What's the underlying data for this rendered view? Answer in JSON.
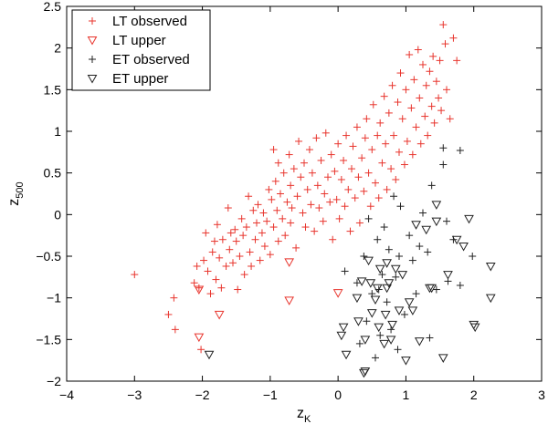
{
  "chart_data": {
    "type": "scatter",
    "title": "",
    "xlabel": "z",
    "xlabel_sub": "K",
    "ylabel": "z",
    "ylabel_sub": "500",
    "xlim": [
      -4,
      3
    ],
    "ylim": [
      -2,
      2.5
    ],
    "xticks": [
      -4,
      -3,
      -2,
      -1,
      0,
      1,
      2,
      3
    ],
    "yticks": [
      -2,
      -1.5,
      -1,
      -0.5,
      0,
      0.5,
      1,
      1.5,
      2,
      2.5
    ],
    "xtick_labels": [
      "−4",
      "−3",
      "−2",
      "−1",
      "0",
      "1",
      "2",
      "3"
    ],
    "ytick_labels": [
      "−2",
      "−1.5",
      "−1",
      "−0.5",
      "0",
      "0.5",
      "1",
      "1.5",
      "2",
      "2.5"
    ],
    "grid": false,
    "legend_position": "top-left",
    "series": [
      {
        "name": "LT observed",
        "marker": "plus",
        "color": "#e8342c",
        "points": [
          [
            -3.0,
            -0.72
          ],
          [
            -2.5,
            -1.2
          ],
          [
            -2.42,
            -1.0
          ],
          [
            -2.4,
            -1.38
          ],
          [
            -2.12,
            -0.82
          ],
          [
            -2.08,
            -0.62
          ],
          [
            -2.05,
            -0.88
          ],
          [
            -2.02,
            -1.62
          ],
          [
            -1.98,
            -0.55
          ],
          [
            -1.95,
            -0.22
          ],
          [
            -1.92,
            -0.68
          ],
          [
            -1.88,
            -0.95
          ],
          [
            -1.85,
            -0.45
          ],
          [
            -1.82,
            -0.32
          ],
          [
            -1.8,
            -0.78
          ],
          [
            -1.78,
            -0.12
          ],
          [
            -1.75,
            -0.52
          ],
          [
            -1.72,
            -0.88
          ],
          [
            -1.7,
            -0.3
          ],
          [
            -1.65,
            -0.62
          ],
          [
            -1.62,
            0.08
          ],
          [
            -1.6,
            -0.42
          ],
          [
            -1.58,
            -0.22
          ],
          [
            -1.55,
            -0.58
          ],
          [
            -1.52,
            -0.18
          ],
          [
            -1.5,
            -0.32
          ],
          [
            -1.48,
            -0.9
          ],
          [
            -1.45,
            -0.5
          ],
          [
            -1.42,
            -0.05
          ],
          [
            -1.4,
            -0.25
          ],
          [
            -1.38,
            -0.72
          ],
          [
            -1.35,
            -0.15
          ],
          [
            -1.32,
            0.22
          ],
          [
            -1.3,
            -0.45
          ],
          [
            -1.28,
            -0.62
          ],
          [
            -1.25,
            0.05
          ],
          [
            -1.22,
            -0.3
          ],
          [
            -1.2,
            -0.1
          ],
          [
            -1.18,
            0.12
          ],
          [
            -1.15,
            -0.55
          ],
          [
            -1.12,
            -0.22
          ],
          [
            -1.1,
            0.02
          ],
          [
            -1.08,
            -0.38
          ],
          [
            -1.05,
            -0.08
          ],
          [
            -1.02,
            0.3
          ],
          [
            -1.0,
            -0.48
          ],
          [
            -0.98,
            0.18
          ],
          [
            -0.95,
            -0.15
          ],
          [
            -0.95,
            0.78
          ],
          [
            -0.92,
            0.4
          ],
          [
            -0.9,
            0.05
          ],
          [
            -0.88,
            -0.32
          ],
          [
            -0.88,
            0.62
          ],
          [
            -0.85,
            0.25
          ],
          [
            -0.82,
            -0.05
          ],
          [
            -0.8,
            0.5
          ],
          [
            -0.78,
            -0.25
          ],
          [
            -0.75,
            0.15
          ],
          [
            -0.72,
            0.72
          ],
          [
            -0.7,
            -0.1
          ],
          [
            -0.7,
            0.35
          ],
          [
            -0.68,
            0.08
          ],
          [
            -0.65,
            0.55
          ],
          [
            -0.62,
            -0.4
          ],
          [
            -0.6,
            0.22
          ],
          [
            -0.58,
            0.88
          ],
          [
            -0.55,
            0.45
          ],
          [
            -0.52,
            0.02
          ],
          [
            -0.5,
            0.62
          ],
          [
            -0.48,
            -0.15
          ],
          [
            -0.45,
            0.3
          ],
          [
            -0.42,
            0.78
          ],
          [
            -0.4,
            0.12
          ],
          [
            -0.38,
            0.5
          ],
          [
            -0.35,
            -0.2
          ],
          [
            -0.32,
            0.92
          ],
          [
            -0.3,
            0.35
          ],
          [
            -0.28,
            0.08
          ],
          [
            -0.25,
            0.65
          ],
          [
            -0.22,
            -0.08
          ],
          [
            -0.2,
            0.25
          ],
          [
            -0.18,
            0.98
          ],
          [
            -0.15,
            0.45
          ],
          [
            -0.12,
            0.15
          ],
          [
            -0.1,
            0.72
          ],
          [
            -0.08,
            -0.3
          ],
          [
            -0.05,
            0.52
          ],
          [
            -0.02,
            0.18
          ],
          [
            0.0,
            0.85
          ],
          [
            0.02,
            -0.05
          ],
          [
            0.05,
            0.42
          ],
          [
            0.08,
            0.65
          ],
          [
            0.1,
            0.1
          ],
          [
            0.12,
            0.95
          ],
          [
            0.15,
            0.3
          ],
          [
            0.18,
            -0.2
          ],
          [
            0.2,
            0.55
          ],
          [
            0.22,
            0.82
          ],
          [
            0.25,
            0.2
          ],
          [
            0.28,
            1.05
          ],
          [
            0.3,
            0.45
          ],
          [
            0.32,
            -0.1
          ],
          [
            0.35,
            0.68
          ],
          [
            0.38,
            0.28
          ],
          [
            0.4,
            0.92
          ],
          [
            0.42,
            1.15
          ],
          [
            0.45,
            0.5
          ],
          [
            0.48,
            0.1
          ],
          [
            0.5,
            0.78
          ],
          [
            0.52,
            1.32
          ],
          [
            0.55,
            0.38
          ],
          [
            0.58,
            0.95
          ],
          [
            0.6,
            0.2
          ],
          [
            0.62,
            1.1
          ],
          [
            0.65,
            0.62
          ],
          [
            0.68,
            1.42
          ],
          [
            0.7,
            0.85
          ],
          [
            0.72,
            0.3
          ],
          [
            0.75,
            1.22
          ],
          [
            0.78,
            0.55
          ],
          [
            0.8,
            1.55
          ],
          [
            0.82,
            0.95
          ],
          [
            0.85,
            0.42
          ],
          [
            0.88,
            1.35
          ],
          [
            0.9,
            0.75
          ],
          [
            0.92,
            1.7
          ],
          [
            0.95,
            1.15
          ],
          [
            0.98,
            0.6
          ],
          [
            1.0,
            1.5
          ],
          [
            1.02,
            0.88
          ],
          [
            1.05,
            1.92
          ],
          [
            1.08,
            1.28
          ],
          [
            1.1,
            0.72
          ],
          [
            1.12,
            1.62
          ],
          [
            1.15,
            1.05
          ],
          [
            1.18,
            1.98
          ],
          [
            1.2,
            1.4
          ],
          [
            1.22,
            0.85
          ],
          [
            1.25,
            1.8
          ],
          [
            1.28,
            1.18
          ],
          [
            1.3,
            1.55
          ],
          [
            1.32,
            0.95
          ],
          [
            1.35,
            1.72
          ],
          [
            1.38,
            1.3
          ],
          [
            1.4,
            1.9
          ],
          [
            1.42,
            1.1
          ],
          [
            1.45,
            1.6
          ],
          [
            1.48,
            1.4
          ],
          [
            1.5,
            1.85
          ],
          [
            1.52,
            1.25
          ],
          [
            1.55,
            2.28
          ],
          [
            1.58,
            2.05
          ],
          [
            1.6,
            1.5
          ],
          [
            1.65,
            1.15
          ],
          [
            1.7,
            2.12
          ],
          [
            1.75,
            1.85
          ]
        ]
      },
      {
        "name": "LT upper",
        "marker": "triangle-down",
        "color": "#e8342c",
        "points": [
          [
            -2.05,
            -0.9
          ],
          [
            -2.05,
            -1.47
          ],
          [
            -1.75,
            -1.2
          ],
          [
            -0.72,
            -0.57
          ],
          [
            -0.72,
            -1.03
          ],
          [
            0.0,
            -0.94
          ]
        ]
      },
      {
        "name": "ET observed",
        "marker": "plus",
        "color": "#222222",
        "points": [
          [
            0.1,
            -0.68
          ],
          [
            0.28,
            -0.82
          ],
          [
            0.32,
            -1.55
          ],
          [
            0.38,
            -0.5
          ],
          [
            0.42,
            -1.28
          ],
          [
            0.45,
            -0.05
          ],
          [
            0.5,
            -0.95
          ],
          [
            0.55,
            -1.72
          ],
          [
            0.58,
            -0.3
          ],
          [
            0.6,
            -0.9
          ],
          [
            0.62,
            -1.45
          ],
          [
            0.65,
            -0.72
          ],
          [
            0.68,
            -0.15
          ],
          [
            0.72,
            -1.05
          ],
          [
            0.75,
            -0.42
          ],
          [
            0.78,
            -1.38
          ],
          [
            0.82,
            0.22
          ],
          [
            0.85,
            -0.75
          ],
          [
            0.88,
            -1.62
          ],
          [
            0.9,
            -0.5
          ],
          [
            0.92,
            0.1
          ],
          [
            0.98,
            -1.2
          ],
          [
            1.05,
            -0.25
          ],
          [
            1.1,
            -0.55
          ],
          [
            1.15,
            -0.95
          ],
          [
            1.2,
            -0.38
          ],
          [
            1.25,
            0.02
          ],
          [
            1.32,
            -0.45
          ],
          [
            1.35,
            -1.48
          ],
          [
            1.38,
            0.35
          ],
          [
            1.45,
            -0.9
          ],
          [
            1.55,
            0.6
          ],
          [
            1.55,
            0.8
          ],
          [
            1.6,
            -0.08
          ],
          [
            1.62,
            -0.8
          ],
          [
            1.7,
            -0.3
          ],
          [
            1.8,
            -0.85
          ],
          [
            1.8,
            0.77
          ],
          [
            1.98,
            -0.5
          ]
        ]
      },
      {
        "name": "ET upper",
        "marker": "triangle-down",
        "color": "#222222",
        "points": [
          [
            -1.9,
            -1.68
          ],
          [
            0.05,
            -1.45
          ],
          [
            0.08,
            -1.35
          ],
          [
            0.12,
            -1.68
          ],
          [
            0.28,
            -1.0
          ],
          [
            0.3,
            -1.28
          ],
          [
            0.35,
            -0.8
          ],
          [
            0.38,
            -1.9
          ],
          [
            0.4,
            -1.88
          ],
          [
            0.4,
            -1.5
          ],
          [
            0.45,
            -0.55
          ],
          [
            0.48,
            -0.82
          ],
          [
            0.5,
            -1.18
          ],
          [
            0.55,
            -1.02
          ],
          [
            0.58,
            -0.88
          ],
          [
            0.6,
            -1.35
          ],
          [
            0.62,
            -0.65
          ],
          [
            0.68,
            -1.55
          ],
          [
            0.7,
            -1.2
          ],
          [
            0.72,
            -0.58
          ],
          [
            0.72,
            -0.88
          ],
          [
            0.75,
            -0.82
          ],
          [
            0.78,
            -1.5
          ],
          [
            0.8,
            -1.32
          ],
          [
            0.85,
            -0.65
          ],
          [
            0.9,
            -1.15
          ],
          [
            0.95,
            -0.72
          ],
          [
            1.0,
            -1.75
          ],
          [
            1.05,
            -1.05
          ],
          [
            1.1,
            -1.15
          ],
          [
            1.15,
            -0.12
          ],
          [
            1.2,
            -1.52
          ],
          [
            1.3,
            -0.18
          ],
          [
            1.35,
            -0.88
          ],
          [
            1.38,
            -0.88
          ],
          [
            1.45,
            -0.08
          ],
          [
            1.45,
            0.12
          ],
          [
            1.55,
            -1.72
          ],
          [
            1.62,
            -0.72
          ],
          [
            1.75,
            -0.3
          ],
          [
            1.85,
            -0.38
          ],
          [
            1.93,
            -0.05
          ],
          [
            2.0,
            -1.32
          ],
          [
            2.02,
            -1.35
          ],
          [
            2.25,
            -0.62
          ],
          [
            2.25,
            -1.0
          ]
        ]
      }
    ]
  }
}
